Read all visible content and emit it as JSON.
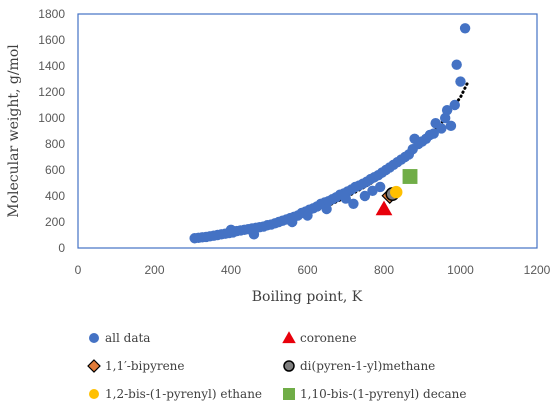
{
  "chart_data": {
    "type": "scatter",
    "xlabel": "Boiling point, K",
    "ylabel": "Molecular weight, g/mol",
    "xlim": [
      0,
      1200
    ],
    "ylim": [
      0,
      1800
    ],
    "xticks": [
      0,
      200,
      400,
      600,
      800,
      1000,
      1200
    ],
    "yticks": [
      0,
      200,
      400,
      600,
      800,
      1000,
      1200,
      1400,
      1600,
      1800
    ],
    "xtick_labels": [
      "0",
      "200",
      "400",
      "600",
      "800",
      "1000",
      "1200"
    ],
    "ytick_labels": [
      "0",
      "200",
      "400",
      "600",
      "800",
      "1000",
      "1200",
      "1400",
      "1600",
      "1800"
    ],
    "grid": false,
    "legend_position": "bottom",
    "series": [
      {
        "name": "all data",
        "marker": "circle",
        "color": "#4472C4",
        "points": [
          [
            305,
            75
          ],
          [
            315,
            78
          ],
          [
            325,
            82
          ],
          [
            335,
            85
          ],
          [
            345,
            90
          ],
          [
            355,
            95
          ],
          [
            365,
            100
          ],
          [
            375,
            105
          ],
          [
            385,
            110
          ],
          [
            395,
            115
          ],
          [
            400,
            140
          ],
          [
            405,
            120
          ],
          [
            415,
            130
          ],
          [
            425,
            135
          ],
          [
            435,
            140
          ],
          [
            445,
            145
          ],
          [
            455,
            150
          ],
          [
            460,
            105
          ],
          [
            465,
            155
          ],
          [
            475,
            160
          ],
          [
            485,
            165
          ],
          [
            495,
            175
          ],
          [
            505,
            180
          ],
          [
            515,
            190
          ],
          [
            525,
            200
          ],
          [
            535,
            210
          ],
          [
            545,
            220
          ],
          [
            555,
            230
          ],
          [
            560,
            200
          ],
          [
            565,
            240
          ],
          [
            575,
            250
          ],
          [
            585,
            270
          ],
          [
            595,
            280
          ],
          [
            600,
            250
          ],
          [
            605,
            295
          ],
          [
            615,
            305
          ],
          [
            625,
            320
          ],
          [
            635,
            340
          ],
          [
            645,
            350
          ],
          [
            650,
            300
          ],
          [
            655,
            360
          ],
          [
            665,
            375
          ],
          [
            675,
            390
          ],
          [
            685,
            410
          ],
          [
            695,
            420
          ],
          [
            700,
            380
          ],
          [
            705,
            435
          ],
          [
            715,
            450
          ],
          [
            720,
            340
          ],
          [
            725,
            470
          ],
          [
            735,
            480
          ],
          [
            745,
            495
          ],
          [
            750,
            400
          ],
          [
            755,
            510
          ],
          [
            765,
            530
          ],
          [
            770,
            440
          ],
          [
            775,
            545
          ],
          [
            785,
            560
          ],
          [
            790,
            470
          ],
          [
            795,
            580
          ],
          [
            805,
            600
          ],
          [
            815,
            620
          ],
          [
            825,
            640
          ],
          [
            835,
            660
          ],
          [
            845,
            680
          ],
          [
            855,
            700
          ],
          [
            865,
            720
          ],
          [
            875,
            760
          ],
          [
            880,
            840
          ],
          [
            890,
            800
          ],
          [
            900,
            820
          ],
          [
            910,
            840
          ],
          [
            920,
            870
          ],
          [
            930,
            880
          ],
          [
            935,
            960
          ],
          [
            950,
            920
          ],
          [
            960,
            1000
          ],
          [
            965,
            1060
          ],
          [
            975,
            940
          ],
          [
            985,
            1100
          ],
          [
            990,
            1410
          ],
          [
            1000,
            1280
          ],
          [
            1012,
            1690
          ]
        ]
      },
      {
        "name": "coronene",
        "marker": "triangle",
        "color": "#E8000B",
        "points": [
          [
            800,
            300
          ]
        ]
      },
      {
        "name": "1,1′-bipyrene",
        "marker": "diamond",
        "color": "#E07B39",
        "points": [
          [
            815,
            402
          ]
        ]
      },
      {
        "name": "di(pyren-1-yl)methane",
        "marker": "circle-open",
        "color": "#7F7F7F",
        "points": [
          [
            822,
            415
          ]
        ]
      },
      {
        "name": "1,2-bis-(1-pyrenyl) ethane",
        "marker": "circle",
        "color": "#FFC000",
        "points": [
          [
            832,
            430
          ]
        ]
      },
      {
        "name": "1,10-bis-(1-pyrenyl) decane",
        "marker": "square",
        "color": "#70AD47",
        "points": [
          [
            868,
            550
          ]
        ]
      }
    ],
    "trendline": {
      "style": "dotted",
      "color": "#000000",
      "points": [
        [
          310,
          70
        ],
        [
          350,
          88
        ],
        [
          400,
          115
        ],
        [
          450,
          142
        ],
        [
          500,
          175
        ],
        [
          550,
          215
        ],
        [
          600,
          262
        ],
        [
          650,
          320
        ],
        [
          700,
          390
        ],
        [
          750,
          470
        ],
        [
          800,
          560
        ],
        [
          850,
          670
        ],
        [
          900,
          810
        ],
        [
          950,
          960
        ],
        [
          1000,
          1160
        ],
        [
          1020,
          1280
        ]
      ]
    }
  }
}
